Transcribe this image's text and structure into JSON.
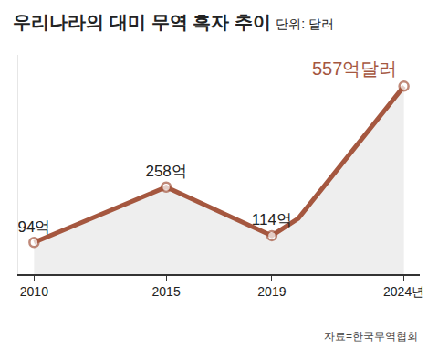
{
  "chart_data": {
    "type": "line",
    "title": "우리나라의 대미 무역 흑자 추이",
    "subtitle": "단위: 달러",
    "source": "자료=한국무역협회",
    "x": [
      2010,
      2015,
      2019,
      2020,
      2024
    ],
    "values": [
      94,
      258,
      114,
      165,
      557
    ],
    "value_labels": [
      "94억",
      "258억",
      "114억",
      null,
      "557억달러"
    ],
    "data_labels": true,
    "color": "#a5573f",
    "marker": "circle",
    "xlim": [
      2009.4,
      2024.6
    ],
    "xticks": [
      2010,
      2015,
      2019,
      {
        "value": 2024,
        "label": "2024년"
      }
    ],
    "ylim": [
      0,
      650
    ],
    "tick_labels": "x",
    "grid": false
  }
}
